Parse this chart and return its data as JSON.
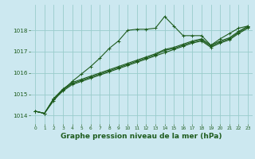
{
  "title": "Graphe pression niveau de la mer (hPa)",
  "bg_color": "#cce8f0",
  "grid_color": "#99cccc",
  "line_color": "#1e5c1e",
  "xlim": [
    -0.5,
    23.5
  ],
  "ylim": [
    1013.6,
    1019.2
  ],
  "yticks": [
    1014,
    1015,
    1016,
    1017,
    1018
  ],
  "xticks": [
    0,
    1,
    2,
    3,
    4,
    5,
    6,
    7,
    8,
    9,
    10,
    11,
    12,
    13,
    14,
    15,
    16,
    17,
    18,
    19,
    20,
    21,
    22,
    23
  ],
  "series": [
    [
      1014.2,
      1014.1,
      1014.7,
      1015.2,
      1015.6,
      1015.95,
      1016.3,
      1016.7,
      1017.15,
      1017.5,
      1018.0,
      1018.05,
      1018.05,
      1018.1,
      1018.65,
      1018.2,
      1017.75,
      1017.75,
      1017.75,
      1017.3,
      1017.6,
      1017.85,
      1018.1,
      1018.2
    ],
    [
      1014.2,
      1014.1,
      1014.8,
      1015.25,
      1015.55,
      1015.7,
      1015.85,
      1016.0,
      1016.15,
      1016.3,
      1016.45,
      1016.6,
      1016.75,
      1016.9,
      1017.1,
      1017.2,
      1017.35,
      1017.5,
      1017.6,
      1017.3,
      1017.5,
      1017.65,
      1017.95,
      1018.2
    ],
    [
      1014.2,
      1014.1,
      1014.8,
      1015.2,
      1015.5,
      1015.65,
      1015.8,
      1015.95,
      1016.1,
      1016.25,
      1016.4,
      1016.55,
      1016.7,
      1016.85,
      1017.05,
      1017.15,
      1017.3,
      1017.45,
      1017.55,
      1017.25,
      1017.45,
      1017.6,
      1017.9,
      1018.15
    ],
    [
      1014.2,
      1014.1,
      1014.75,
      1015.15,
      1015.45,
      1015.6,
      1015.75,
      1015.9,
      1016.05,
      1016.2,
      1016.35,
      1016.5,
      1016.65,
      1016.8,
      1016.95,
      1017.1,
      1017.25,
      1017.4,
      1017.5,
      1017.2,
      1017.4,
      1017.55,
      1017.85,
      1018.1
    ]
  ],
  "ylabel_fontsize": 5.5,
  "xlabel_fontsize": 6.5,
  "title_fontsize": 6.5
}
